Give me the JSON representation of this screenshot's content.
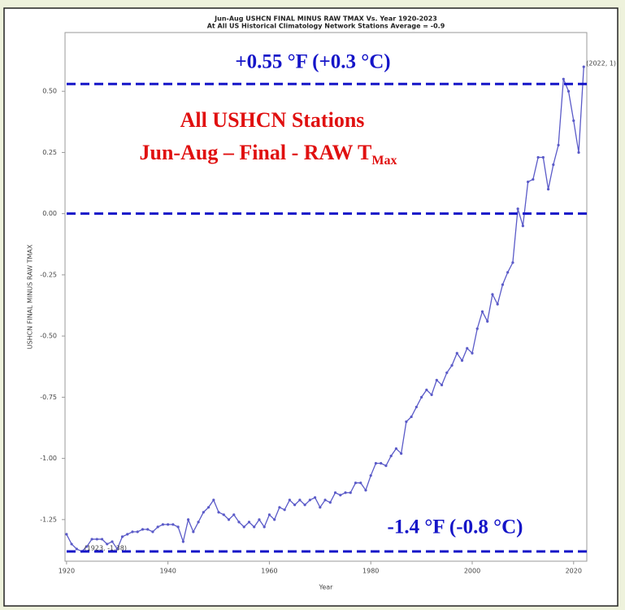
{
  "chart_data": {
    "type": "line",
    "title": "Jun-Aug USHCN FINAL MINUS RAW TMAX Vs. Year 1920-2023",
    "subtitle": "At All US Historical Climatology Network Stations Average = -0.9",
    "x_label": "Year",
    "y_label": "USHCN FINAL MINUS RAW TMAX",
    "x": [
      1920,
      1921,
      1922,
      1923,
      1924,
      1925,
      1926,
      1927,
      1928,
      1929,
      1930,
      1931,
      1932,
      1933,
      1934,
      1935,
      1936,
      1937,
      1938,
      1939,
      1940,
      1941,
      1942,
      1943,
      1944,
      1945,
      1946,
      1947,
      1948,
      1949,
      1950,
      1951,
      1952,
      1953,
      1954,
      1955,
      1956,
      1957,
      1958,
      1959,
      1960,
      1961,
      1962,
      1963,
      1964,
      1965,
      1966,
      1967,
      1968,
      1969,
      1970,
      1971,
      1972,
      1973,
      1974,
      1975,
      1976,
      1977,
      1978,
      1979,
      1980,
      1981,
      1982,
      1983,
      1984,
      1985,
      1986,
      1987,
      1988,
      1989,
      1990,
      1991,
      1992,
      1993,
      1994,
      1995,
      1996,
      1997,
      1998,
      1999,
      2000,
      2001,
      2002,
      2003,
      2004,
      2005,
      2006,
      2007,
      2008,
      2009,
      2010,
      2011,
      2012,
      2013,
      2014,
      2015,
      2016,
      2017,
      2018,
      2019,
      2020,
      2021,
      2022
    ],
    "series": [
      {
        "name": "USHCN FINAL MINUS RAW TMAX",
        "color": "#5a5ac8",
        "values": [
          -1.31,
          -1.35,
          -1.37,
          -1.38,
          -1.36,
          -1.33,
          -1.33,
          -1.33,
          -1.35,
          -1.34,
          -1.37,
          -1.32,
          -1.31,
          -1.3,
          -1.3,
          -1.29,
          -1.29,
          -1.3,
          -1.28,
          -1.27,
          -1.27,
          -1.27,
          -1.28,
          -1.34,
          -1.25,
          -1.3,
          -1.26,
          -1.22,
          -1.2,
          -1.17,
          -1.22,
          -1.23,
          -1.25,
          -1.23,
          -1.26,
          -1.28,
          -1.26,
          -1.28,
          -1.25,
          -1.28,
          -1.23,
          -1.25,
          -1.2,
          -1.21,
          -1.17,
          -1.19,
          -1.17,
          -1.19,
          -1.17,
          -1.16,
          -1.2,
          -1.17,
          -1.18,
          -1.14,
          -1.15,
          -1.14,
          -1.14,
          -1.1,
          -1.1,
          -1.13,
          -1.07,
          -1.02,
          -1.02,
          -1.03,
          -0.99,
          -0.96,
          -0.98,
          -0.85,
          -0.83,
          -0.79,
          -0.75,
          -0.72,
          -0.74,
          -0.68,
          -0.7,
          -0.65,
          -0.62,
          -0.57,
          -0.6,
          -0.55,
          -0.57,
          -0.47,
          -0.4,
          -0.44,
          -0.33,
          -0.37,
          -0.29,
          -0.24,
          -0.2,
          0.02,
          -0.05,
          0.13,
          0.14,
          0.23,
          0.23,
          0.1,
          0.2,
          0.28,
          0.55,
          0.5,
          0.38,
          0.25,
          0.6
        ]
      }
    ],
    "xlim": [
      1919.7,
      2022.6
    ],
    "ylim": [
      -1.42,
      0.74
    ],
    "xticks": [
      1920,
      1940,
      1960,
      1980,
      2000,
      2020
    ],
    "yticks": [
      {
        "value": 0.5,
        "label": "0.50"
      },
      {
        "value": 0.25,
        "label": "0.25"
      },
      {
        "value": 0,
        "label": "0.00"
      },
      {
        "value": -0.25,
        "label": "-0.25"
      },
      {
        "value": -0.5,
        "label": "-0.50"
      },
      {
        "value": -0.75,
        "label": "-0.75"
      },
      {
        "value": -1,
        "label": "-1.00"
      },
      {
        "value": -1.25,
        "label": "-1.25"
      }
    ],
    "point_labels": [
      {
        "x": 2022,
        "y": 0.6,
        "text": "(2022, 1)"
      },
      {
        "x": 1923,
        "y": -1.38,
        "text": "(1923, -1.38)"
      }
    ],
    "reference_lines": {
      "color": "#1515c8",
      "values": [
        0.53,
        0,
        -1.38
      ]
    },
    "annotations": {
      "top": "+0.55 °F (+0.3 °C)",
      "bottom": "-1.4 °F (-0.8 °C)",
      "red_line1": "All USHCN Stations",
      "red_line2": "Jun-Aug – Final - RAW T",
      "red_subscript": "Max",
      "red_color": "#e01010"
    }
  }
}
